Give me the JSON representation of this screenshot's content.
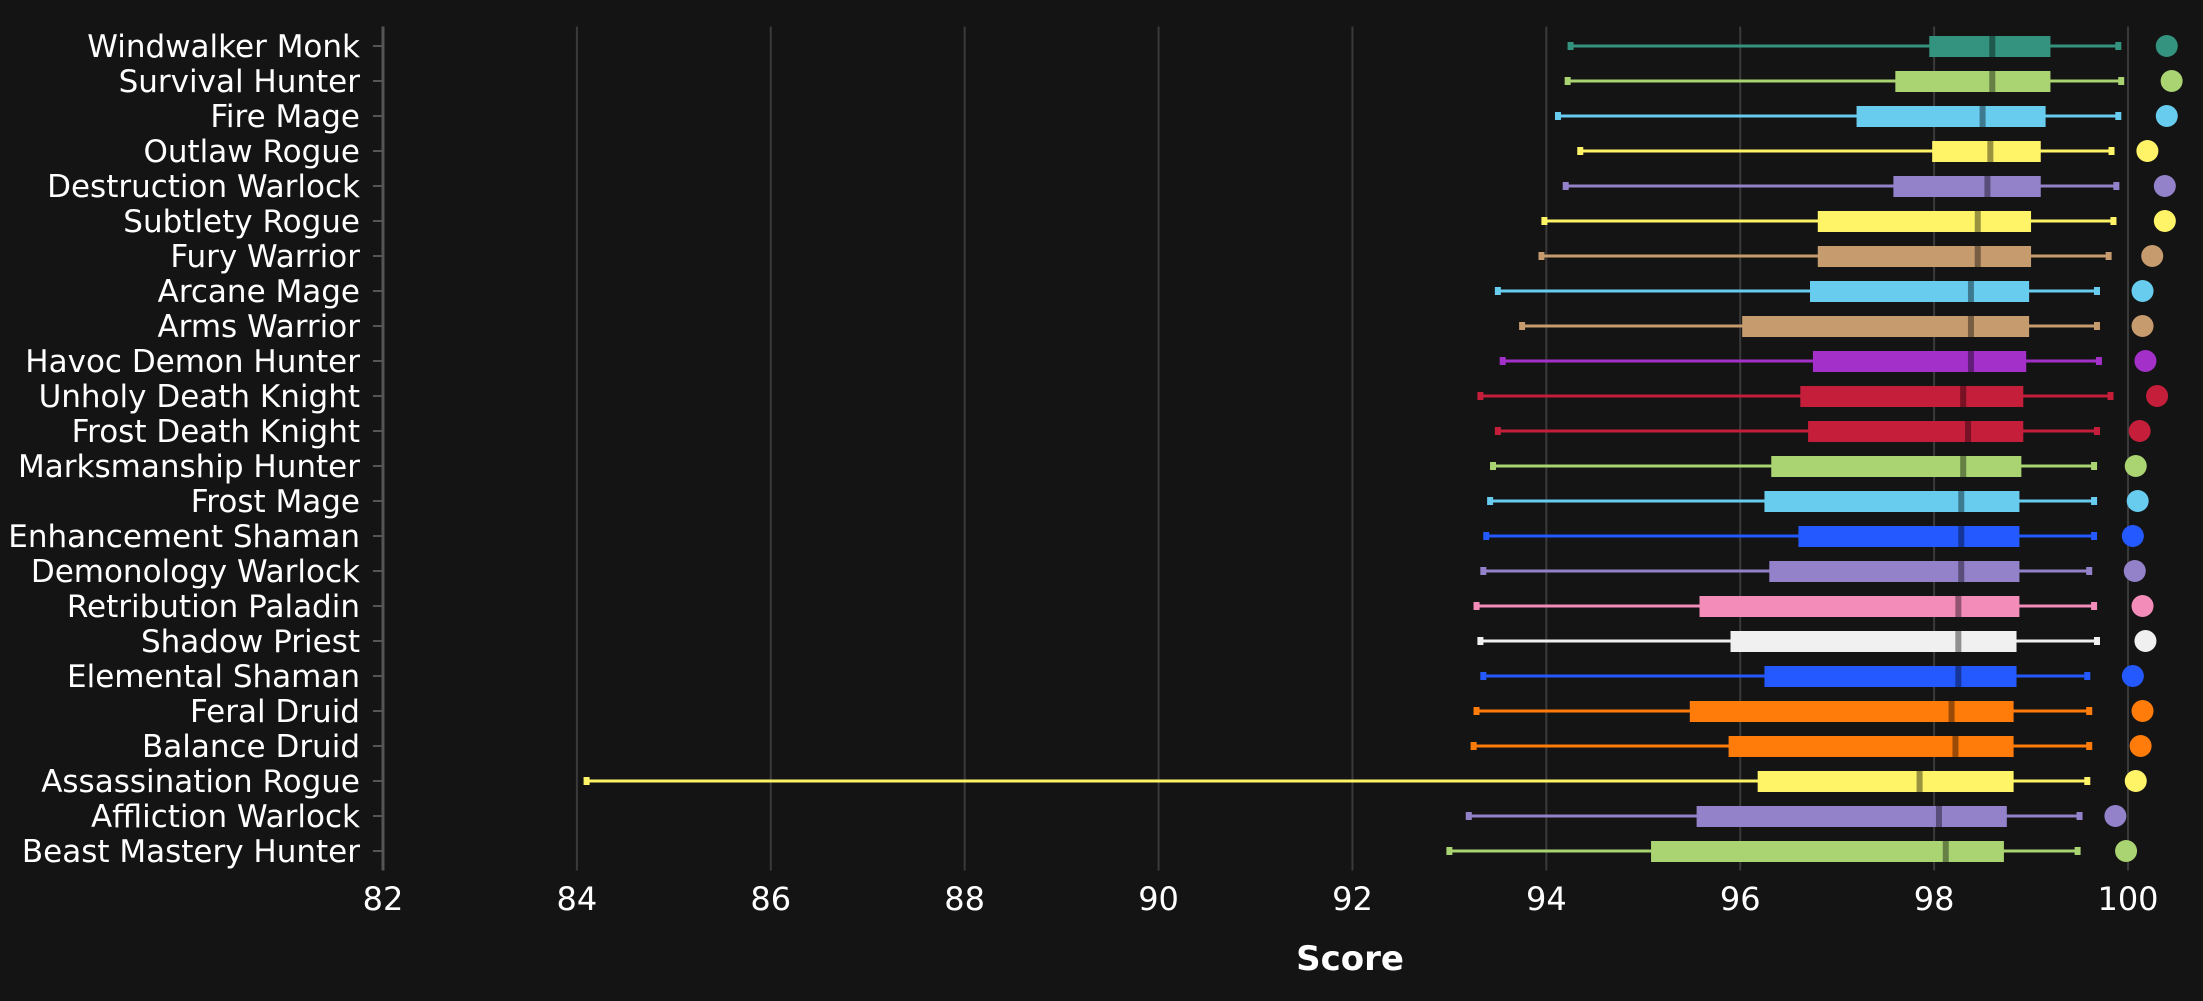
{
  "chart_data": {
    "type": "boxplot",
    "title": "",
    "xlabel": "Score",
    "ylabel": "",
    "xlim": [
      82,
      100
    ],
    "xticks": [
      82,
      84,
      86,
      88,
      90,
      92,
      94,
      96,
      98,
      100
    ],
    "grid": "vertical",
    "categories": [
      "Windwalker Monk",
      "Survival Hunter",
      "Fire Mage",
      "Outlaw Rogue",
      "Destruction Warlock",
      "Subtlety Rogue",
      "Fury Warrior",
      "Arcane Mage",
      "Arms Warrior",
      "Havoc Demon Hunter",
      "Unholy Death Knight",
      "Frost Death Knight",
      "Marksmanship Hunter",
      "Frost Mage",
      "Enhancement Shaman",
      "Demonology Warlock",
      "Retribution Paladin",
      "Shadow Priest",
      "Elemental Shaman",
      "Feral Druid",
      "Balance Druid",
      "Assassination Rogue",
      "Affliction Warlock",
      "Beast Mastery Hunter"
    ],
    "series": [
      {
        "category": "Windwalker Monk",
        "color": "#33937f",
        "min": 94.25,
        "q1": 97.95,
        "median": 98.6,
        "q3": 99.2,
        "max": 99.9,
        "max_point": 100.4
      },
      {
        "category": "Survival Hunter",
        "color": "#aad372",
        "min": 94.22,
        "q1": 97.6,
        "median": 98.6,
        "q3": 99.2,
        "max": 99.93,
        "max_point": 100.45
      },
      {
        "category": "Fire Mage",
        "color": "#68ccef",
        "min": 94.12,
        "q1": 97.2,
        "median": 98.5,
        "q3": 99.15,
        "max": 99.9,
        "max_point": 100.4
      },
      {
        "category": "Outlaw Rogue",
        "color": "#fff468",
        "min": 94.35,
        "q1": 97.98,
        "median": 98.58,
        "q3": 99.1,
        "max": 99.83,
        "max_point": 100.2
      },
      {
        "category": "Destruction Warlock",
        "color": "#9382c9",
        "min": 94.2,
        "q1": 97.58,
        "median": 98.55,
        "q3": 99.1,
        "max": 99.88,
        "max_point": 100.38
      },
      {
        "category": "Subtlety Rogue",
        "color": "#fff468",
        "min": 93.98,
        "q1": 96.8,
        "median": 98.45,
        "q3": 99.0,
        "max": 99.85,
        "max_point": 100.38
      },
      {
        "category": "Fury Warrior",
        "color": "#c69b6d",
        "min": 93.95,
        "q1": 96.8,
        "median": 98.45,
        "q3": 99.0,
        "max": 99.8,
        "max_point": 100.25
      },
      {
        "category": "Arcane Mage",
        "color": "#68ccef",
        "min": 93.5,
        "q1": 96.72,
        "median": 98.38,
        "q3": 98.98,
        "max": 99.68,
        "max_point": 100.15
      },
      {
        "category": "Arms Warrior",
        "color": "#c69b6d",
        "min": 93.75,
        "q1": 96.02,
        "median": 98.38,
        "q3": 98.98,
        "max": 99.68,
        "max_point": 100.15
      },
      {
        "category": "Havoc Demon Hunter",
        "color": "#a330c9",
        "min": 93.55,
        "q1": 96.75,
        "median": 98.38,
        "q3": 98.95,
        "max": 99.7,
        "max_point": 100.18
      },
      {
        "category": "Unholy Death Knight",
        "color": "#c41e3a",
        "min": 93.32,
        "q1": 96.62,
        "median": 98.3,
        "q3": 98.92,
        "max": 99.82,
        "max_point": 100.3
      },
      {
        "category": "Frost Death Knight",
        "color": "#c41e3a",
        "min": 93.5,
        "q1": 96.7,
        "median": 98.35,
        "q3": 98.92,
        "max": 99.68,
        "max_point": 100.12
      },
      {
        "category": "Marksmanship Hunter",
        "color": "#aad372",
        "min": 93.45,
        "q1": 96.32,
        "median": 98.3,
        "q3": 98.9,
        "max": 99.65,
        "max_point": 100.08
      },
      {
        "category": "Frost Mage",
        "color": "#68ccef",
        "min": 93.42,
        "q1": 96.25,
        "median": 98.28,
        "q3": 98.88,
        "max": 99.65,
        "max_point": 100.1
      },
      {
        "category": "Enhancement Shaman",
        "color": "#2359ff",
        "min": 93.38,
        "q1": 96.6,
        "median": 98.28,
        "q3": 98.88,
        "max": 99.65,
        "max_point": 100.05
      },
      {
        "category": "Demonology Warlock",
        "color": "#9382c9",
        "min": 93.35,
        "q1": 96.3,
        "median": 98.28,
        "q3": 98.88,
        "max": 99.6,
        "max_point": 100.07
      },
      {
        "category": "Retribution Paladin",
        "color": "#f48cba",
        "min": 93.28,
        "q1": 95.58,
        "median": 98.25,
        "q3": 98.88,
        "max": 99.65,
        "max_point": 100.15
      },
      {
        "category": "Shadow Priest",
        "color": "#f0f0f0",
        "min": 93.32,
        "q1": 95.9,
        "median": 98.25,
        "q3": 98.85,
        "max": 99.68,
        "max_point": 100.18
      },
      {
        "category": "Elemental Shaman",
        "color": "#2359ff",
        "min": 93.35,
        "q1": 96.25,
        "median": 98.25,
        "q3": 98.85,
        "max": 99.58,
        "max_point": 100.05
      },
      {
        "category": "Feral Druid",
        "color": "#ff7c0a",
        "min": 93.28,
        "q1": 95.48,
        "median": 98.18,
        "q3": 98.82,
        "max": 99.6,
        "max_point": 100.15
      },
      {
        "category": "Balance Druid",
        "color": "#ff7c0a",
        "min": 93.25,
        "q1": 95.88,
        "median": 98.22,
        "q3": 98.82,
        "max": 99.6,
        "max_point": 100.13
      },
      {
        "category": "Assassination Rogue",
        "color": "#fff468",
        "min": 84.1,
        "q1": 96.18,
        "median": 97.85,
        "q3": 98.82,
        "max": 99.58,
        "max_point": 100.08
      },
      {
        "category": "Affliction Warlock",
        "color": "#9382c9",
        "min": 93.2,
        "q1": 95.55,
        "median": 98.05,
        "q3": 98.75,
        "max": 99.5,
        "max_point": 99.87
      },
      {
        "category": "Beast Mastery Hunter",
        "color": "#aad372",
        "min": 93.0,
        "q1": 95.08,
        "median": 98.12,
        "q3": 98.72,
        "max": 99.48,
        "max_point": 99.98
      }
    ]
  }
}
